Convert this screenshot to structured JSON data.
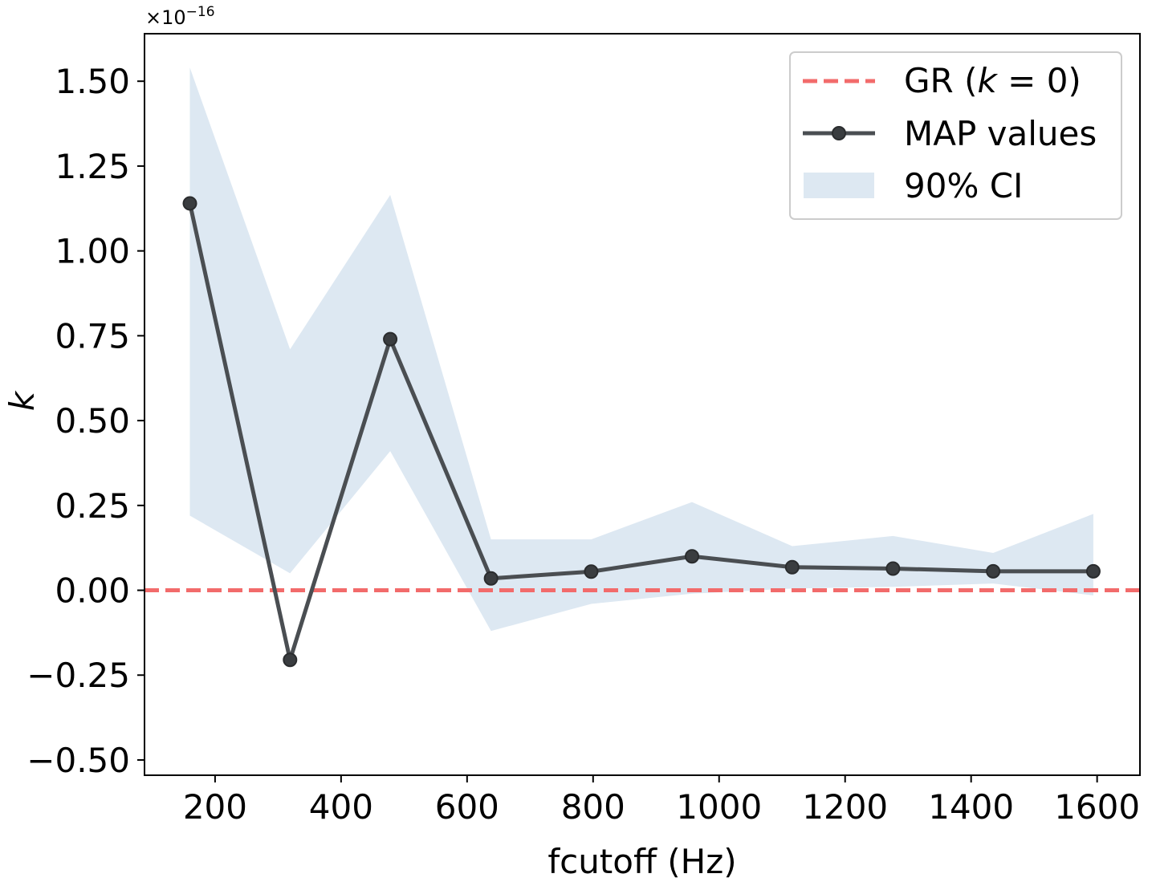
{
  "chart_data": {
    "type": "line",
    "xlabel": "fcutoff (Hz)",
    "ylabel": "k",
    "y_offset_label": "×10",
    "y_offset_exponent": "−16",
    "xlim": [
      88,
      1668
    ],
    "ylim": [
      -0.545,
      1.64
    ],
    "x_ticks": [
      200,
      400,
      600,
      800,
      1000,
      1200,
      1400,
      1600
    ],
    "x_tick_labels": [
      "200",
      "400",
      "600",
      "800",
      "1000",
      "1200",
      "1400",
      "1600"
    ],
    "y_ticks": [
      -0.5,
      -0.25,
      0,
      0.25,
      0.5,
      0.75,
      1.0,
      1.25,
      1.5
    ],
    "y_tick_labels": [
      "−0.50",
      "−0.25",
      "0.00",
      "0.25",
      "0.50",
      "0.75",
      "1.00",
      "1.25",
      "1.50"
    ],
    "grid": false,
    "legend_position": "top-right",
    "x": [
      160,
      319,
      478,
      638,
      797,
      957,
      1116,
      1276,
      1435,
      1594
    ],
    "series": [
      {
        "name": "MAP values",
        "values": [
          1.14,
          -0.205,
          0.74,
          0.035,
          0.055,
          0.1,
          0.068,
          0.064,
          0.056,
          0.056
        ],
        "color": "#4a4e52"
      },
      {
        "name": "90% CI",
        "lower": [
          0.22,
          0.05,
          0.41,
          -0.12,
          -0.04,
          -0.01,
          0.005,
          0.01,
          0.02,
          -0.015
        ],
        "upper": [
          1.54,
          0.71,
          1.165,
          0.15,
          0.15,
          0.26,
          0.13,
          0.16,
          0.11,
          0.225
        ],
        "color": "#dde8f2"
      },
      {
        "name": "GR (k = 0)",
        "value": 0,
        "color": "#f26b6b",
        "style": "dashed"
      }
    ],
    "legend": {
      "gr_prefix": "GR (",
      "gr_var": "k",
      "gr_suffix": " = 0)",
      "map_label": "MAP values",
      "ci_label": "90% CI"
    }
  }
}
